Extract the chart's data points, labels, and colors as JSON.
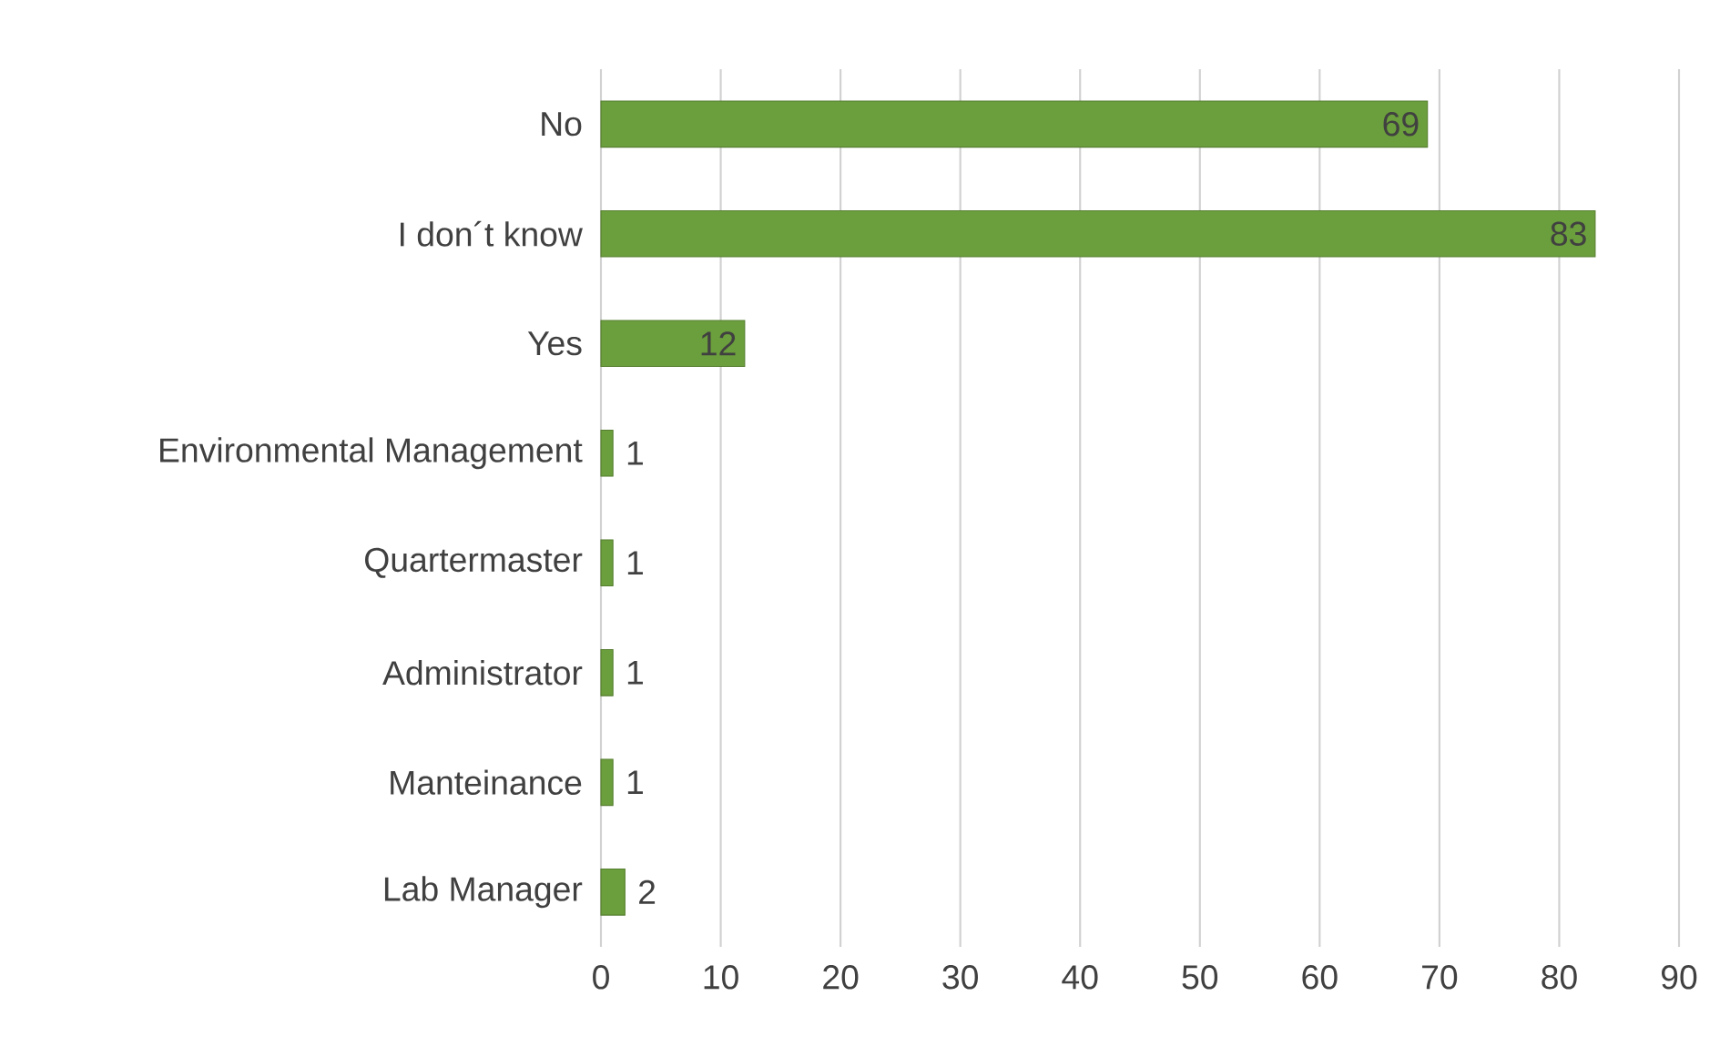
{
  "chart_data": {
    "type": "bar",
    "orientation": "horizontal",
    "categories": [
      "No",
      "I don´t know",
      "Yes",
      "Environmental Management",
      "Quartermaster",
      "Administrator",
      "Manteinance",
      "Lab Manager"
    ],
    "values": [
      69,
      83,
      12,
      1,
      1,
      1,
      1,
      2
    ],
    "color": "#6b9e3c",
    "xlim": [
      0,
      90
    ],
    "xticks": [
      0,
      10,
      20,
      30,
      40,
      50,
      60,
      70,
      80,
      90
    ],
    "grid": "x",
    "data_labels": true
  }
}
